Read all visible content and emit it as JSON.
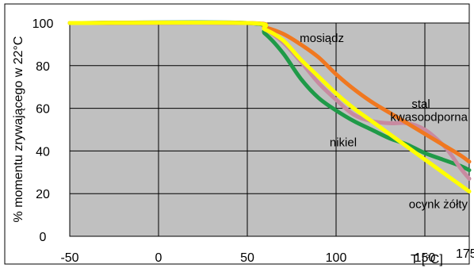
{
  "chart_data": {
    "type": "line",
    "title": "",
    "ylabel": "% momentu zrywającego w 22°C",
    "xlabel": "T [°C]",
    "xlim": [
      -50,
      175
    ],
    "ylim": [
      0,
      100
    ],
    "xticks": [
      -50,
      0,
      50,
      100,
      150,
      175
    ],
    "xtick_labels": [
      "-50",
      "0",
      "50",
      "100",
      "150",
      "175"
    ],
    "yticks": [
      0,
      20,
      40,
      60,
      80,
      100
    ],
    "ytick_labels": [
      "0",
      "20",
      "40",
      "60",
      "80",
      "100"
    ],
    "grid": true,
    "plot_background": "#c0c0c0",
    "series": [
      {
        "name": "mosiądz",
        "color": "#f07820",
        "x": [
          -50,
          50,
          60,
          70,
          80,
          90,
          100,
          110,
          120,
          130,
          140,
          150,
          160,
          170,
          175
        ],
        "y": [
          100,
          100,
          98,
          95,
          90,
          84,
          76,
          69,
          63,
          58,
          53,
          48,
          43,
          38,
          35
        ]
      },
      {
        "name": "stal kwasoodporna",
        "color": "#c88aa0",
        "x": [
          -50,
          50,
          60,
          70,
          80,
          90,
          100,
          110,
          120,
          130,
          140,
          150,
          160,
          165,
          170,
          175
        ],
        "y": [
          100,
          100,
          97,
          91,
          82,
          72,
          64,
          57,
          54,
          53,
          53,
          50,
          43,
          38,
          32,
          27
        ]
      },
      {
        "name": "nikiel",
        "color": "#1f9a48",
        "x": [
          -50,
          50,
          60,
          70,
          80,
          90,
          100,
          110,
          120,
          130,
          140,
          150,
          160,
          170,
          175
        ],
        "y": [
          100,
          100,
          95,
          86,
          74,
          65,
          59,
          54,
          50,
          46,
          43,
          39,
          36,
          33,
          31
        ]
      },
      {
        "name": "ocynk żółty",
        "color": "#ffff00",
        "x": [
          -50,
          50,
          60,
          70,
          80,
          90,
          100,
          110,
          120,
          130,
          140,
          150,
          160,
          170,
          175
        ],
        "y": [
          100,
          100,
          97,
          92,
          83,
          75,
          67,
          60,
          54,
          48,
          42,
          36,
          30,
          24,
          21
        ]
      }
    ],
    "annotations": [
      {
        "text": "mosiądz",
        "x": 92,
        "y": 93
      },
      {
        "text": "stal",
        "x": 160,
        "y": 62
      },
      {
        "text": "kwasoodporna",
        "x": 160,
        "y": 56
      },
      {
        "text": "nikiel",
        "x": 104,
        "y": 44
      },
      {
        "text": "ocynk żółty",
        "x": 160,
        "y": 15
      }
    ]
  }
}
